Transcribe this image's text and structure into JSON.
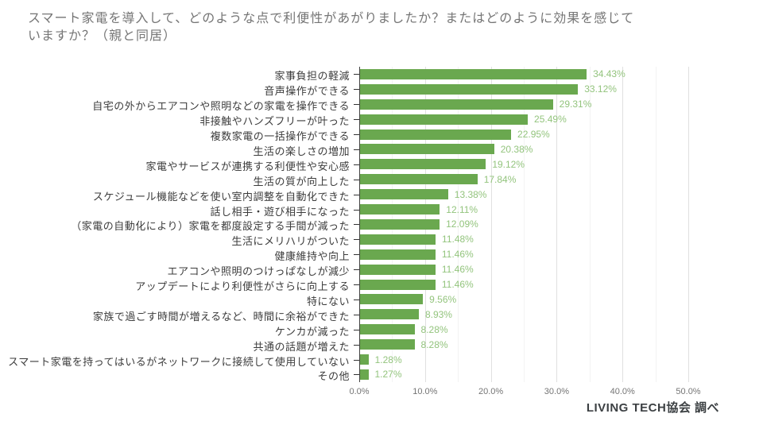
{
  "title": {
    "text": "スマート家電を導入して、どのような点で利便性があがりましたか？またはどのように効果を感じていますか？（親と同居）",
    "line1": "スマート家電を導入して、どのような点で利便性があがりましたか？またはどのように効果を感じて",
    "line2": "いますか？（親と同居）"
  },
  "footer": {
    "source": "LIVING TECH協会 調べ"
  },
  "colors": {
    "bar": "#6aa84f",
    "value_label": "#93c47d",
    "axis_text": "#757575",
    "category_text": "#3c3c3c",
    "grid_major": "#e0e0e0",
    "grid_minor": "#f3f3f3",
    "baseline": "#424242",
    "tick": "#333333"
  },
  "chart_data": {
    "type": "bar",
    "orientation": "horizontal",
    "title": "スマート家電を導入して、どのような点で利便性があがりましたか？またはどのように効果を感じていますか？（親と同居）",
    "xlabel": "",
    "ylabel": "",
    "xlim": [
      0,
      50
    ],
    "grid": true,
    "legend": "none",
    "x_ticks": [
      "0.0%",
      "10.0%",
      "20.0%",
      "30.0%",
      "40.0%",
      "50.0%"
    ],
    "x_tick_values": [
      0,
      10,
      20,
      30,
      40,
      50
    ],
    "minor_grid_step": 5,
    "categories": [
      "家事負担の軽減",
      "音声操作ができる",
      "自宅の外からエアコンや照明などの家電を操作できる",
      "非接触やハンズフリーが叶った",
      "複数家電の一括操作ができる",
      "生活の楽しさの増加",
      "家電やサービスが連携する利便性や安心感",
      "生活の質が向上した",
      "スケジュール機能などを使い室内調整を自動化できた",
      "話し相手・遊び相手になった",
      "（家電の自動化により）家電を都度設定する手間が減った",
      "生活にメリハリがついた",
      "健康維持や向上",
      "エアコンや照明のつけっぱなしが減少",
      "アップデートにより利便性がさらに向上する",
      "特にない",
      "家族で過ごす時間が増えるなど、時間に余裕ができた",
      "ケンカが減った",
      "共通の話題が増えた",
      "スマート家電を持ってはいるがネットワークに接続して使用していない",
      "その他"
    ],
    "values": [
      34.43,
      33.12,
      29.31,
      25.49,
      22.95,
      20.38,
      19.12,
      17.84,
      13.38,
      12.11,
      12.09,
      11.48,
      11.46,
      11.46,
      11.46,
      9.56,
      8.93,
      8.28,
      8.28,
      1.28,
      1.27
    ],
    "value_labels": [
      "34.43%",
      "33.12%",
      "29.31%",
      "25.49%",
      "22.95%",
      "20.38%",
      "19.12%",
      "17.84%",
      "13.38%",
      "12.11%",
      "12.09%",
      "11.48%",
      "11.46%",
      "11.46%",
      "11.46%",
      "9.56%",
      "8.93%",
      "8.28%",
      "8.28%",
      "1.28%",
      "1.27%"
    ]
  }
}
